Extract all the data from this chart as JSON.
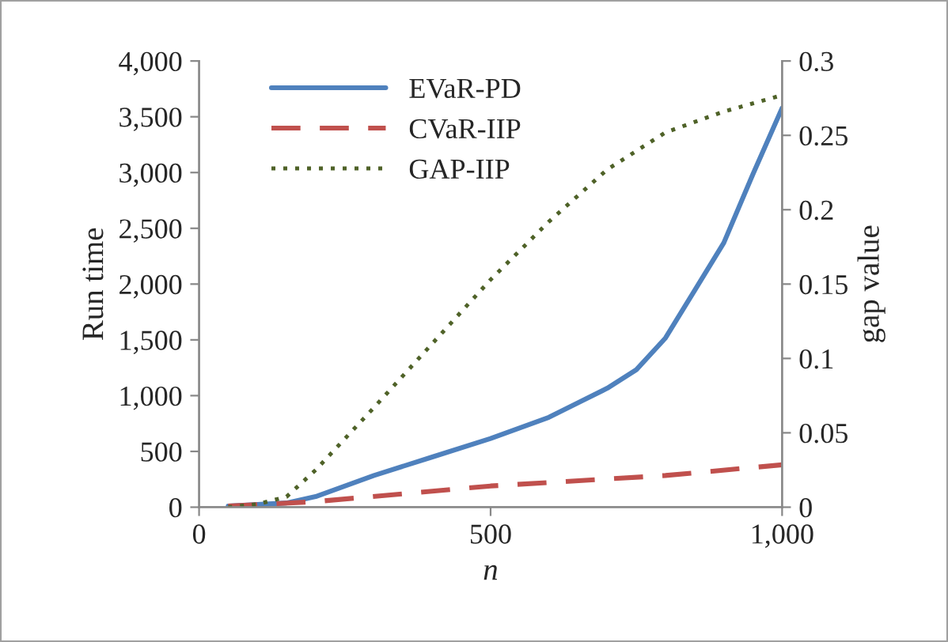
{
  "chart_data": {
    "type": "line",
    "xlabel": "n",
    "ylabel": "Run time",
    "y2label": "gap value",
    "grid": false,
    "legend": "top left",
    "xlim": [
      0,
      1000
    ],
    "xticks": [
      0,
      500,
      {
        "value": 1000,
        "label": "1,000"
      }
    ],
    "ylim": [
      0,
      4000
    ],
    "yticks": [
      0,
      500,
      {
        "value": 1000,
        "label": "1,000"
      },
      {
        "value": 1500,
        "label": "1,500"
      },
      {
        "value": 2000,
        "label": "2,000"
      },
      {
        "value": 2500,
        "label": "2,500"
      },
      {
        "value": 3000,
        "label": "3,000"
      },
      {
        "value": 3500,
        "label": "3,500"
      },
      {
        "value": 4000,
        "label": "4,000"
      }
    ],
    "y2lim": [
      0,
      0.3
    ],
    "y2ticks": [
      0,
      0.05,
      0.1,
      0.15,
      0.2,
      0.25,
      0.3
    ],
    "series": [
      {
        "name": "EVaR-PD",
        "color": "#4f81bd",
        "line_style": "solid",
        "x": [
          50,
          100,
          150,
          200,
          300,
          400,
          500,
          600,
          700,
          750,
          800,
          850,
          900,
          950,
          1000
        ],
        "values": [
          10,
          24,
          38,
          95,
          284,
          450,
          616,
          806,
          1066,
          1232,
          1517,
          1943,
          2370,
          2986,
          3578
        ]
      },
      {
        "name": "CVaR-IIP",
        "color": "#c0504d",
        "line_style": "dashed",
        "x": [
          50,
          200,
          500,
          800,
          1000
        ],
        "values": [
          10,
          50,
          190,
          284,
          380
        ]
      },
      {
        "name": "GAP-IIP",
        "color": "#4f6228",
        "line_style": "dotted",
        "axis": "y2",
        "x": [
          50,
          100,
          150,
          200,
          300,
          400,
          500,
          600,
          700,
          800,
          900,
          1000
        ],
        "values": [
          0,
          0.002,
          0.007,
          0.025,
          0.067,
          0.11,
          0.153,
          0.192,
          0.227,
          0.252,
          0.266,
          0.277
        ]
      }
    ]
  }
}
